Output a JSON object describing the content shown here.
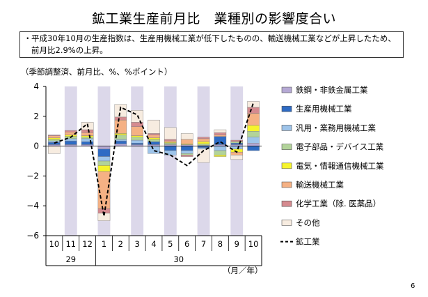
{
  "title": "鉱工業生産前月比　業種別の影響度合い",
  "summary": {
    "bullet": "・",
    "text": "平成30年10月の生産指数は、生産用機械工業が低下したものの、輸送機械工業などが上昇したため、前月比2.9%の上昇。"
  },
  "note": "（季節調整済、前月比、%、%ポイント）",
  "unit": "（月／年）",
  "page_number": "6",
  "chart_data": {
    "type": "bar",
    "stacked": true,
    "categories": [
      "10",
      "11",
      "12",
      "1",
      "2",
      "3",
      "4",
      "5",
      "6",
      "7",
      "8",
      "9",
      "10"
    ],
    "year_labels": [
      {
        "label": "29",
        "from": 0,
        "to": 2
      },
      {
        "label": "30",
        "from": 3,
        "to": 12
      }
    ],
    "ylim": [
      -6,
      4
    ],
    "yticks": [
      4,
      2,
      0,
      -2,
      -4,
      -6
    ],
    "ytick_labels": [
      "4",
      "2",
      "0",
      "−2",
      "−4",
      "−6"
    ],
    "shaded_categories": [
      1,
      3,
      5,
      7,
      9,
      11
    ],
    "series": [
      {
        "name": "鉄鋼・非鉄金属工業",
        "color": "#b5a8d4",
        "values": [
          0.1,
          0.1,
          0.1,
          -0.2,
          0.15,
          0.1,
          0.1,
          0.1,
          0.1,
          0.05,
          0.1,
          0.1,
          0.2
        ]
      },
      {
        "name": "生産用機械工業",
        "color": "#2e6bc4",
        "values": [
          0.15,
          0.25,
          0.2,
          -0.5,
          0.2,
          0.1,
          0.2,
          -0.3,
          -0.3,
          -0.1,
          0.55,
          0.1,
          -0.3
        ]
      },
      {
        "name": "汎用・業務用機械工業",
        "color": "#9ec4ea",
        "values": [
          0.1,
          0.15,
          0.2,
          -0.3,
          0.1,
          0.2,
          -0.5,
          -0.3,
          -0.2,
          -0.1,
          -0.3,
          -0.2,
          0.4
        ]
      },
      {
        "name": "電子部品・デバイス工業",
        "color": "#b2d39a",
        "values": [
          0.1,
          0.15,
          0.1,
          -0.3,
          0.3,
          0.2,
          0.15,
          0.1,
          -0.1,
          0.1,
          -0.3,
          0.1,
          0.4
        ]
      },
      {
        "name": "電気・情報通信機械工業",
        "color": "#f6f42c",
        "values": [
          0.1,
          0.1,
          0.1,
          -0.4,
          0.1,
          0.1,
          0.1,
          0.05,
          0.05,
          0.15,
          -0.1,
          -0.2,
          0.4
        ]
      },
      {
        "name": "輸送機械工業",
        "color": "#f5b184",
        "values": [
          0.15,
          0.2,
          0.2,
          -2.5,
          0.9,
          0.6,
          0.2,
          0.1,
          0.3,
          0.2,
          0.1,
          -0.2,
          0.8
        ]
      },
      {
        "name": "化学工業（除. 医薬品）",
        "color": "#d58a8f",
        "values": [
          0.05,
          0.1,
          0.2,
          -0.3,
          0.2,
          0.3,
          0.1,
          0.1,
          -0.1,
          0.1,
          0.15,
          0.1,
          0.4
        ]
      },
      {
        "name": "その他",
        "color": "#f7ece0",
        "values": [
          -0.5,
          0.0,
          0.5,
          -0.5,
          0.85,
          0.8,
          0.9,
          0.8,
          0.4,
          -0.9,
          0.2,
          -0.3,
          0.4
        ]
      }
    ],
    "line": {
      "name": "鉱工業",
      "values": [
        0.2,
        0.6,
        1.5,
        -4.7,
        2.6,
        2.1,
        -0.3,
        -0.6,
        -1.3,
        -0.3,
        0.3,
        -0.4,
        2.9
      ]
    }
  }
}
